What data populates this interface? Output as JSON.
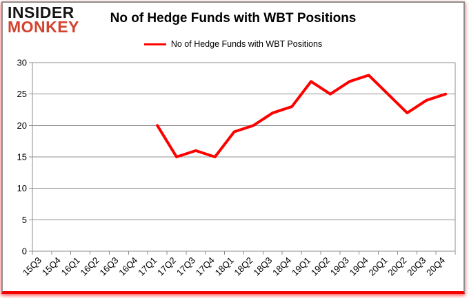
{
  "logo": {
    "line1": "INSIDER",
    "line2": "MONKEY",
    "brand_color": "#d2432f"
  },
  "header": {
    "title": "No of Hedge Funds with WBT Positions"
  },
  "legend": {
    "label": "No of Hedge Funds with WBT Positions",
    "color": "#ff0000"
  },
  "chart_data": {
    "type": "line",
    "title": "No of Hedge Funds with WBT Positions",
    "categories": [
      "15Q3",
      "15Q4",
      "16Q1",
      "16Q2",
      "16Q3",
      "16Q4",
      "17Q1",
      "17Q2",
      "17Q3",
      "17Q4",
      "18Q1",
      "18Q2",
      "18Q3",
      "18Q4",
      "19Q1",
      "19Q2",
      "19Q3",
      "19Q4",
      "20Q1",
      "20Q2",
      "20Q3",
      "20Q4"
    ],
    "series": [
      {
        "name": "No of Hedge Funds with WBT Positions",
        "color": "#ff0000",
        "values": [
          null,
          null,
          null,
          null,
          null,
          null,
          20,
          15,
          16,
          15,
          19,
          20,
          22,
          23,
          27,
          25,
          27,
          28,
          25,
          22,
          24,
          25
        ]
      }
    ],
    "xlabel": "",
    "ylabel": "",
    "ylim": [
      0,
      30
    ],
    "yticks": [
      0,
      5,
      10,
      15,
      20,
      25,
      30
    ],
    "grid": true,
    "grid_color": "#8c8c8c",
    "axis_color": "#8c8c8c",
    "tick_label_color": "#000000",
    "legend_position": "top-center",
    "line_width": 4
  }
}
